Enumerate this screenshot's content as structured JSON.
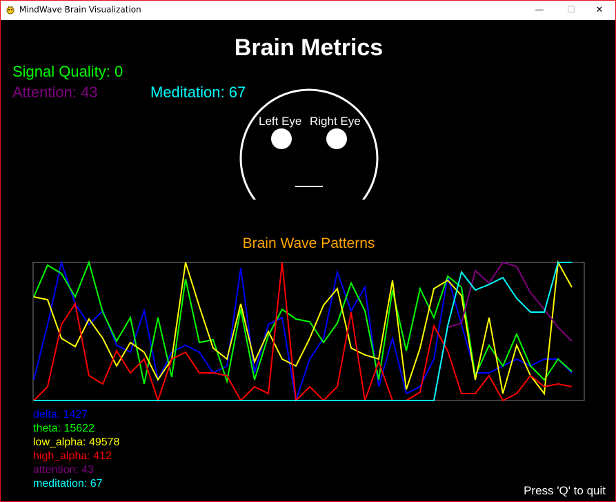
{
  "window": {
    "title": "MindWave Brain Visualization",
    "minimize_glyph": "—",
    "maximize_glyph": "☐",
    "close_glyph": "✕"
  },
  "header": {
    "title": "Brain Metrics"
  },
  "metrics": {
    "signal_quality": "Signal Quality: 0",
    "attention": "Attention: 43",
    "meditation": "Meditation: 67"
  },
  "face": {
    "left_eye_label": "Left Eye",
    "right_eye_label": "Right Eye"
  },
  "chart_section": {
    "title": "Brain Wave Patterns"
  },
  "legend": [
    {
      "text": "delta: 1427",
      "color": "#0000ff"
    },
    {
      "text": "theta: 15622",
      "color": "#00ff00"
    },
    {
      "text": "low_alpha: 49578",
      "color": "#ffff00"
    },
    {
      "text": "high_alpha: 412",
      "color": "#ff0000"
    },
    {
      "text": "attention: 43",
      "color": "#800080"
    },
    {
      "text": "meditation: 67",
      "color": "#00ffff"
    }
  ],
  "footer": {
    "quit_hint": "Press 'Q' to quit"
  },
  "colors": {
    "signal": "#00ff00",
    "attention": "#800080",
    "meditation": "#00ffff",
    "chart_title": "#ffa500",
    "white": "#ffffff",
    "chart_border": "#808080"
  },
  "chart_data": {
    "type": "line",
    "title": "Brain Wave Patterns",
    "x": [
      0,
      1,
      2,
      3,
      4,
      5,
      6,
      7,
      8,
      9,
      10,
      11,
      12,
      13,
      14,
      15,
      16,
      17,
      18,
      19,
      20,
      21,
      22,
      23,
      24,
      25,
      26,
      27,
      28,
      29,
      30,
      31,
      32,
      33,
      34,
      35,
      36,
      37,
      38,
      39
    ],
    "ylim": [
      0,
      1
    ],
    "series": [
      {
        "name": "delta",
        "color": "#0000ff",
        "values": [
          0.15,
          0.55,
          1.0,
          0.7,
          0.55,
          0.65,
          0.4,
          0.35,
          0.65,
          0.15,
          0.35,
          0.4,
          0.35,
          0.2,
          0.25,
          0.96,
          0.2,
          0.55,
          0.6,
          0.0,
          0.3,
          0.45,
          0.93,
          0.65,
          0.82,
          0.1,
          0.45,
          0.05,
          0.1,
          0.3,
          0.9,
          0.55,
          0.2,
          0.2,
          0.25,
          0.3,
          0.25,
          0.3,
          0.3,
          0.2
        ]
      },
      {
        "name": "theta",
        "color": "#00ff00",
        "values": [
          0.75,
          0.98,
          0.92,
          0.75,
          1.0,
          0.64,
          0.43,
          0.6,
          0.12,
          0.6,
          0.17,
          0.88,
          0.42,
          0.44,
          0.14,
          0.66,
          0.15,
          0.47,
          0.66,
          0.59,
          0.57,
          0.42,
          0.56,
          0.85,
          0.65,
          0.15,
          0.8,
          0.36,
          0.81,
          0.6,
          0.9,
          0.82,
          0.18,
          0.4,
          0.25,
          0.48,
          0.25,
          0.15,
          0.3,
          0.21
        ]
      },
      {
        "name": "low_alpha",
        "color": "#ffff00",
        "values": [
          0.75,
          0.73,
          0.45,
          0.39,
          0.59,
          0.45,
          0.25,
          0.42,
          0.35,
          0.15,
          0.3,
          1.0,
          0.68,
          0.38,
          0.3,
          0.7,
          0.28,
          0.5,
          0.3,
          0.25,
          0.45,
          0.69,
          0.81,
          0.38,
          0.33,
          0.3,
          0.87,
          0.08,
          0.38,
          0.81,
          0.87,
          0.76,
          0.15,
          0.6,
          0.05,
          0.4,
          0.18,
          0.05,
          1.0,
          0.82
        ]
      },
      {
        "name": "high_alpha",
        "color": "#ff0000",
        "values": [
          0.0,
          0.1,
          0.55,
          0.7,
          0.18,
          0.12,
          0.36,
          0.2,
          0.3,
          0.0,
          0.3,
          0.35,
          0.2,
          0.2,
          0.18,
          0.0,
          0.1,
          0.05,
          1.0,
          0.0,
          0.1,
          0.0,
          0.1,
          0.64,
          0.0,
          0.28,
          0.0,
          0.0,
          0.06,
          0.54,
          0.36,
          0.05,
          0.05,
          0.18,
          0.0,
          0.05,
          0.18,
          0.1,
          0.12,
          0.1
        ]
      },
      {
        "name": "attention",
        "color": "#800080",
        "values": [
          0,
          0,
          0,
          0,
          0,
          0,
          0,
          0,
          0,
          0,
          0,
          0,
          0,
          0,
          0,
          0,
          0,
          0,
          0,
          0,
          0,
          0,
          0,
          0,
          0,
          0,
          0,
          0,
          0,
          0,
          0.53,
          0.56,
          0.94,
          0.85,
          1.0,
          0.97,
          0.78,
          0.66,
          0.53,
          0.43
        ]
      },
      {
        "name": "meditation",
        "color": "#00ffff",
        "values": [
          0,
          0,
          0,
          0,
          0,
          0,
          0,
          0,
          0,
          0,
          0,
          0,
          0,
          0,
          0,
          0,
          0,
          0,
          0,
          0,
          0,
          0,
          0,
          0,
          0,
          0,
          0,
          0,
          0,
          0,
          0.54,
          0.93,
          0.8,
          0.84,
          0.89,
          0.74,
          0.64,
          0.64,
          1.0,
          1.0
        ]
      }
    ]
  }
}
